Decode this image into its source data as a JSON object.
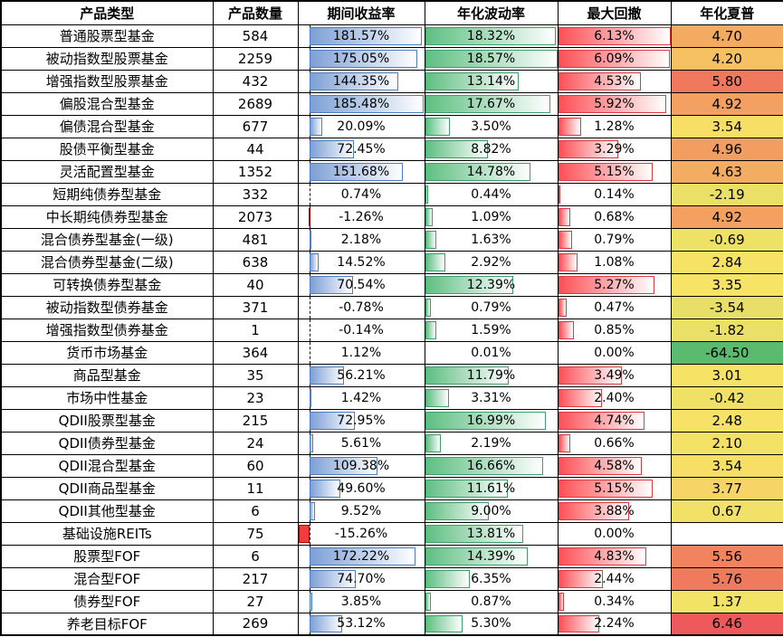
{
  "table": {
    "columns": [
      {
        "key": "product-type",
        "label": "产品类型"
      },
      {
        "key": "product-count",
        "label": "产品数量"
      },
      {
        "key": "period-return",
        "label": "期间收益率"
      },
      {
        "key": "annualized-volatility",
        "label": "年化波动率"
      },
      {
        "key": "max-drawdown",
        "label": "最大回撤"
      },
      {
        "key": "annualized-sharpe",
        "label": "年化夏普"
      }
    ]
  },
  "chart_data": {
    "type": "table",
    "title": "",
    "columns": [
      "产品类型",
      "产品数量",
      "期间收益率",
      "年化波动率",
      "最大回撤",
      "年化夏普"
    ],
    "rows": [
      {
        "type": "普通股票型基金",
        "count": 584,
        "ret": 181.57,
        "vol": 18.32,
        "dd": 6.13,
        "sharpe": 4.7
      },
      {
        "type": "被动指数型股票基金",
        "count": 2259,
        "ret": 175.05,
        "vol": 18.57,
        "dd": 6.09,
        "sharpe": 4.2
      },
      {
        "type": "增强指数型股票基金",
        "count": 432,
        "ret": 144.35,
        "vol": 13.14,
        "dd": 4.53,
        "sharpe": 5.8
      },
      {
        "type": "偏股混合型基金",
        "count": 2689,
        "ret": 185.48,
        "vol": 17.67,
        "dd": 5.92,
        "sharpe": 4.92
      },
      {
        "type": "偏债混合型基金",
        "count": 677,
        "ret": 20.09,
        "vol": 3.5,
        "dd": 1.28,
        "sharpe": 3.54
      },
      {
        "type": "股债平衡型基金",
        "count": 44,
        "ret": 72.45,
        "vol": 8.82,
        "dd": 3.29,
        "sharpe": 4.96
      },
      {
        "type": "灵活配置型基金",
        "count": 1352,
        "ret": 151.68,
        "vol": 14.78,
        "dd": 5.15,
        "sharpe": 4.63
      },
      {
        "type": "短期纯债券型基金",
        "count": 332,
        "ret": 0.74,
        "vol": 0.44,
        "dd": 0.14,
        "sharpe": -2.19
      },
      {
        "type": "中长期纯债券型基金",
        "count": 2073,
        "ret": -1.26,
        "vol": 1.09,
        "dd": 0.68,
        "sharpe": 4.92
      },
      {
        "type": "混合债券型基金(一级)",
        "count": 481,
        "ret": 2.18,
        "vol": 1.63,
        "dd": 0.79,
        "sharpe": -0.69
      },
      {
        "type": "混合债券型基金(二级)",
        "count": 638,
        "ret": 14.52,
        "vol": 2.92,
        "dd": 1.08,
        "sharpe": 2.84
      },
      {
        "type": "可转换债券型基金",
        "count": 40,
        "ret": 70.54,
        "vol": 12.39,
        "dd": 5.27,
        "sharpe": 3.35
      },
      {
        "type": "被动指数型债券基金",
        "count": 371,
        "ret": -0.78,
        "vol": 0.79,
        "dd": 0.47,
        "sharpe": -3.54
      },
      {
        "type": "增强指数型债券基金",
        "count": 1,
        "ret": -0.14,
        "vol": 1.59,
        "dd": 0.85,
        "sharpe": -1.82
      },
      {
        "type": "货币市场基金",
        "count": 364,
        "ret": 1.12,
        "vol": 0.01,
        "dd": 0.0,
        "sharpe": -64.5
      },
      {
        "type": "商品型基金",
        "count": 35,
        "ret": 56.21,
        "vol": 11.79,
        "dd": 3.49,
        "sharpe": 3.01
      },
      {
        "type": "市场中性基金",
        "count": 23,
        "ret": 1.42,
        "vol": 3.31,
        "dd": 2.4,
        "sharpe": -0.42
      },
      {
        "type": "QDII股票型基金",
        "count": 215,
        "ret": 72.95,
        "vol": 16.99,
        "dd": 4.74,
        "sharpe": 2.48
      },
      {
        "type": "QDII债券型基金",
        "count": 24,
        "ret": 5.61,
        "vol": 2.19,
        "dd": 0.66,
        "sharpe": 2.1
      },
      {
        "type": "QDII混合型基金",
        "count": 60,
        "ret": 109.38,
        "vol": 16.66,
        "dd": 4.58,
        "sharpe": 3.54
      },
      {
        "type": "QDII商品型基金",
        "count": 11,
        "ret": 49.6,
        "vol": 11.61,
        "dd": 5.15,
        "sharpe": 3.77
      },
      {
        "type": "QDII其他型基金",
        "count": 6,
        "ret": 9.52,
        "vol": 9.0,
        "dd": 3.88,
        "sharpe": 0.67
      },
      {
        "type": "基础设施REITs",
        "count": 75,
        "ret": -15.26,
        "vol": 13.81,
        "dd": 0.0,
        "sharpe": null
      },
      {
        "type": "股票型FOF",
        "count": 6,
        "ret": 172.22,
        "vol": 14.39,
        "dd": 4.83,
        "sharpe": 5.56
      },
      {
        "type": "混合型FOF",
        "count": 217,
        "ret": 74.7,
        "vol": 6.35,
        "dd": 2.44,
        "sharpe": 5.76
      },
      {
        "type": "债券型FOF",
        "count": 27,
        "ret": 3.85,
        "vol": 0.87,
        "dd": 0.34,
        "sharpe": 1.37
      },
      {
        "type": "养老目标FOF",
        "count": 269,
        "ret": 53.12,
        "vol": 5.3,
        "dd": 2.24,
        "sharpe": 6.46
      }
    ],
    "conditional_formatting": {
      "return_bar": {
        "min": -15.26,
        "max": 185.48,
        "axis_pct": 9,
        "fill": "#7EA0D5",
        "border": "#4C7DBF",
        "negative_fill": "#F43B3E",
        "negative_border": "#AA0000"
      },
      "volatility_bar": {
        "min": 0,
        "max": 18.57,
        "fill": "#5FBF82",
        "border": "#3E9E67"
      },
      "drawdown_bar": {
        "min": 0,
        "max": 6.13,
        "fill": "#FB5157",
        "border": "#DE393F"
      },
      "sharpe_scale": {
        "min": {
          "value": -64.5,
          "color": "#5ABA6E"
        },
        "mid": {
          "value": 3.445,
          "color": "#F7E366"
        },
        "max": {
          "value": 6.46,
          "color": "#EE5A5B"
        },
        "empty_color": "#FFFFFF"
      }
    }
  }
}
